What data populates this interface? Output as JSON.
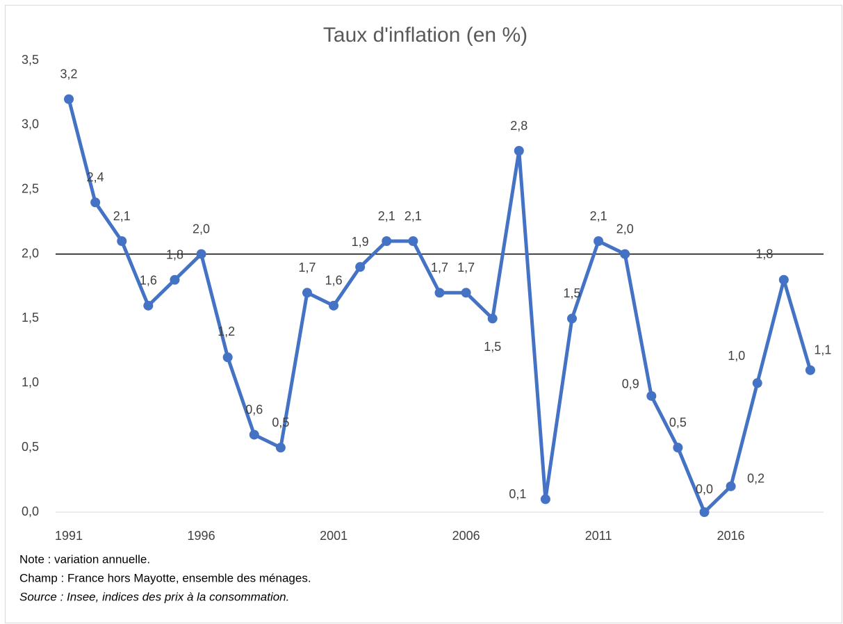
{
  "chart_data": {
    "type": "line",
    "title": "Taux d'inflation (en %)",
    "x": [
      1991,
      1992,
      1993,
      1994,
      1995,
      1996,
      1997,
      1998,
      1999,
      2000,
      2001,
      2002,
      2003,
      2004,
      2005,
      2006,
      2007,
      2008,
      2009,
      2010,
      2011,
      2012,
      2013,
      2014,
      2015,
      2016,
      2017,
      2018,
      2019
    ],
    "series": [
      {
        "name": "Taux d'inflation",
        "color": "#4472c4",
        "values": [
          3.2,
          2.4,
          2.1,
          1.6,
          1.8,
          2.0,
          1.2,
          0.6,
          0.5,
          1.7,
          1.6,
          1.9,
          2.1,
          2.1,
          1.7,
          1.7,
          1.5,
          2.8,
          0.1,
          1.5,
          2.1,
          2.0,
          0.9,
          0.5,
          0.0,
          0.2,
          1.0,
          1.8,
          1.1
        ],
        "value_labels": [
          "3,2",
          "2,4",
          "2,1",
          "1,6",
          "1,8",
          "2,0",
          "1,2",
          "0,6",
          "0,5",
          "1,7",
          "1,6",
          "1,9",
          "2,1",
          "2,1",
          "1,7",
          "1,7",
          "1,5",
          "2,8",
          "0,1",
          "1,5",
          "2,1",
          "2,0",
          "0,9",
          "0,5",
          "0,0",
          "0,2",
          "1,0",
          "1,8",
          "1,1"
        ]
      }
    ],
    "xlim": [
      1990.5,
      2019.5
    ],
    "xticks": [
      1991,
      1996,
      2001,
      2006,
      2011,
      2016
    ],
    "ylim": [
      0,
      3.5
    ],
    "yticks": [
      {
        "value": 0,
        "label": "0,0"
      },
      {
        "value": 0.5,
        "label": "0,5"
      },
      {
        "value": 1,
        "label": "1,0"
      },
      {
        "value": 1.5,
        "label": "1,5"
      },
      {
        "value": 2,
        "label": "2,0"
      },
      {
        "value": 2.5,
        "label": "2,5"
      },
      {
        "value": 3,
        "label": "3,0"
      },
      {
        "value": 3.5,
        "label": "3,5"
      }
    ],
    "reference_line": 2,
    "notes": [
      "Note : variation annuelle.",
      "Champ : France hors Mayotte, ensemble des ménages.",
      "Source : Insee, indices des prix à la consommation."
    ]
  }
}
